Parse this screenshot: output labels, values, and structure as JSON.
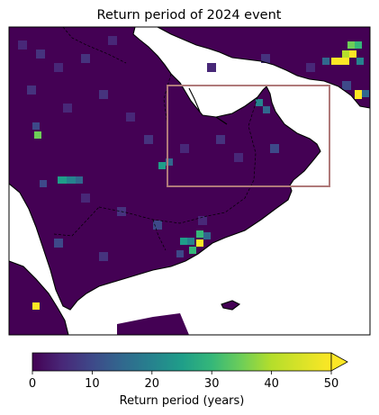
{
  "title": "Return period of 2024 event",
  "colorbar": {
    "label": "Return period (years)",
    "min": 0,
    "max": 50,
    "ticks": [
      "0",
      "10",
      "20",
      "30",
      "40",
      "50"
    ],
    "extend": "max",
    "colormap": "viridis"
  },
  "colors": {
    "background_cell": "#440154",
    "highlight_box": "#b07a7a",
    "coastline": "#000000",
    "border": "#000000"
  }
}
